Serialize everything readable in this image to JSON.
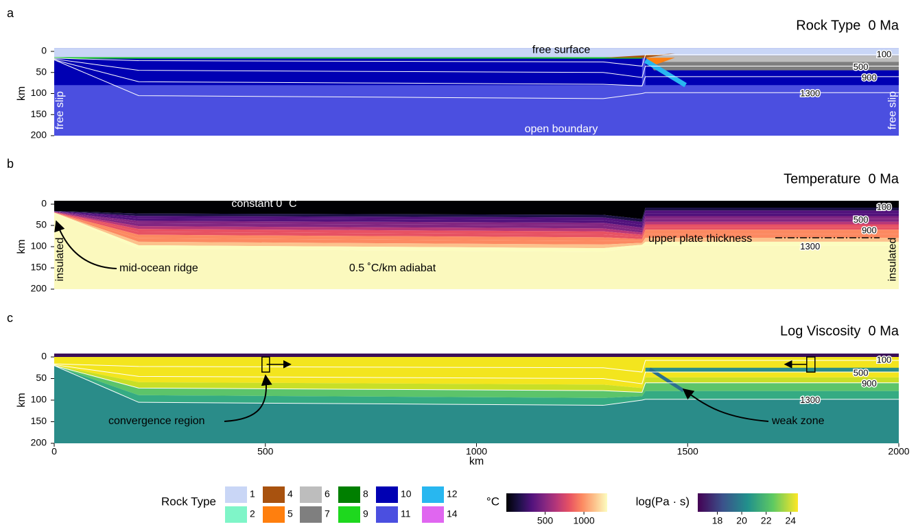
{
  "panels": [
    {
      "letter": "a",
      "title": "Rock Type  0 Ma",
      "y_label": "km",
      "yticks": [
        0,
        50,
        100,
        150,
        200
      ],
      "isotherm_labels": [
        100,
        500,
        900,
        1300
      ],
      "annotations": [
        "free surface",
        "free slip",
        "free slip",
        "open boundary"
      ]
    },
    {
      "letter": "b",
      "title": "Temperature  0 Ma",
      "y_label": "km",
      "yticks": [
        0,
        50,
        100,
        150,
        200
      ],
      "isotherm_labels": [
        100,
        500,
        900,
        1300
      ],
      "annotations": [
        "constant 0 ˚C",
        "insulated",
        "insulated",
        "mid-ocean ridge",
        "0.5 ˚C/km adiabat",
        "upper plate thickness"
      ]
    },
    {
      "letter": "c",
      "title": "Log Viscosity  0 Ma",
      "y_label": "km",
      "yticks": [
        0,
        50,
        100,
        150,
        200
      ],
      "isotherm_labels": [
        100,
        500,
        900,
        1300
      ],
      "annotations": [
        "convergence region",
        "weak zone"
      ]
    }
  ],
  "x_axis": {
    "ticks": [
      0,
      500,
      1000,
      1500,
      2000
    ],
    "label": "km"
  },
  "legend": {
    "title": "Rock Type",
    "items": [
      {
        "label": "1",
        "color": "#c9d6f6"
      },
      {
        "label": "2",
        "color": "#7ff5c8"
      },
      {
        "label": "4",
        "color": "#a8520f"
      },
      {
        "label": "5",
        "color": "#ff7f0e"
      },
      {
        "label": "6",
        "color": "#bdbdbd"
      },
      {
        "label": "7",
        "color": "#7f7f7f"
      },
      {
        "label": "8",
        "color": "#007f00"
      },
      {
        "label": "9",
        "color": "#1ed81e"
      },
      {
        "label": "10",
        "color": "#0000b3"
      },
      {
        "label": "11",
        "color": "#4b4fe0"
      },
      {
        "label": "12",
        "color": "#28b7f0"
      },
      {
        "label": "14",
        "color": "#e066f0"
      }
    ]
  },
  "colorbars": [
    {
      "label": "°C",
      "ticks": [
        500,
        1000
      ],
      "range": [
        0,
        1300
      ]
    },
    {
      "label": "log(Pa · s)",
      "ticks": [
        18,
        20,
        22,
        24
      ],
      "range": [
        16.4,
        24.6
      ]
    }
  ]
}
